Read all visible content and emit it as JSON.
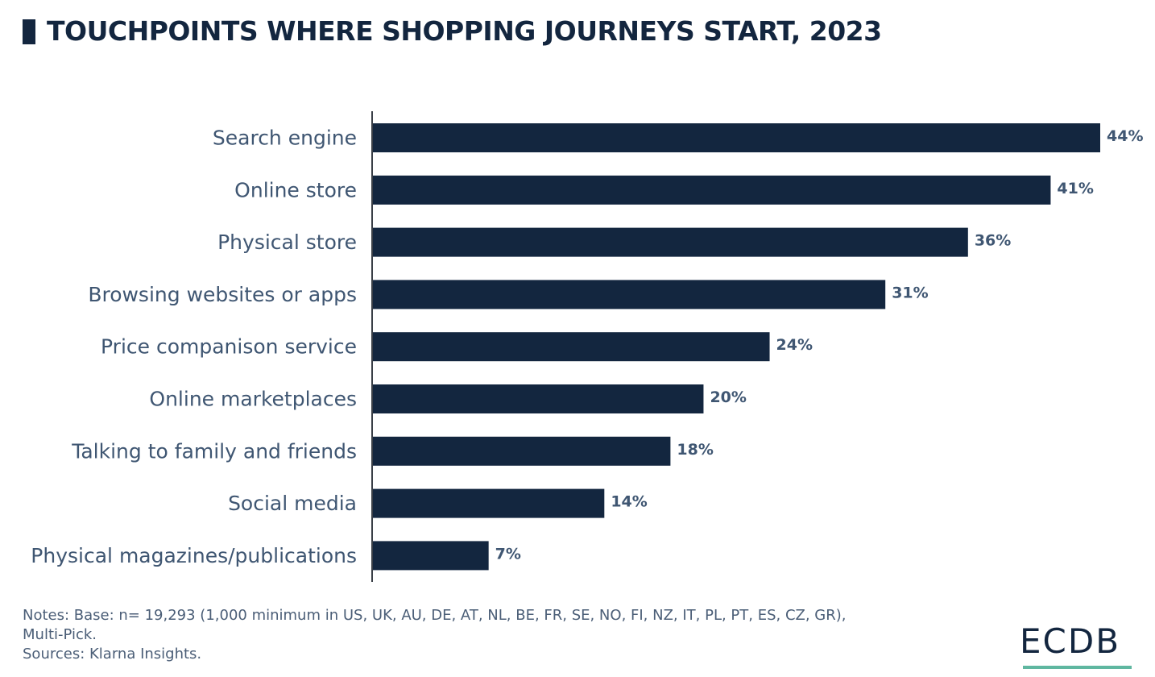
{
  "header": {
    "title": "TOUCHPOINTS WHERE SHOPPING JOURNEYS START, 2023"
  },
  "chart_data": {
    "type": "bar",
    "orientation": "horizontal",
    "title": "TOUCHPOINTS WHERE SHOPPING JOURNEYS START, 2023",
    "xlabel": "",
    "ylabel": "",
    "categories": [
      "Search engine",
      "Online store",
      "Physical store",
      "Browsing websites or apps",
      "Price companison service",
      "Online marketplaces",
      "Talking to family and friends",
      "Social media",
      "Physical magazines/publications"
    ],
    "values": [
      44,
      41,
      36,
      31,
      24,
      20,
      18,
      14,
      7
    ],
    "value_labels": [
      "44%",
      "41%",
      "36%",
      "31%",
      "24%",
      "20%",
      "18%",
      "14%",
      "7%"
    ],
    "unit": "%",
    "xlim": [
      0,
      44
    ],
    "grid": false,
    "colors": {
      "bar": "#13263f",
      "text": "#3f5672"
    }
  },
  "notes": {
    "line1": "Notes: Base: n= 19,293 (1,000 minimum in US, UK, AU, DE, AT, NL, BE, FR, SE, NO, FI, NZ, IT, PL, PT, ES, CZ, GR),",
    "line2": "Multi-Pick.",
    "sources": "Sources: Klarna Insights."
  },
  "brand": {
    "logo_text": "ECDB",
    "accent_color": "#5fb7a0"
  }
}
